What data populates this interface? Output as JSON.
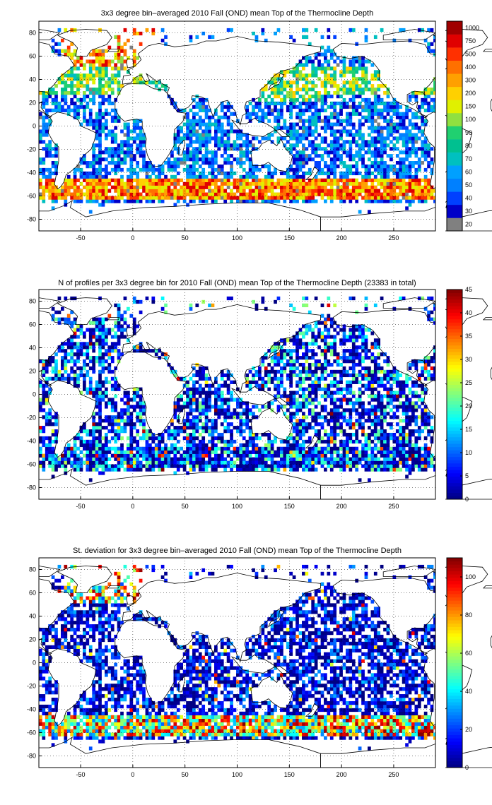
{
  "panels": [
    {
      "title": "3x3 degree bin–averaged 2010 Fall (OND) mean Top of the Thermocline Depth",
      "colorbar": {
        "type": "categorical",
        "labels": [
          "20",
          "30",
          "40",
          "50",
          "60",
          "70",
          "80",
          "90",
          "100",
          "150",
          "200",
          "300",
          "400",
          "500",
          "750",
          "1000"
        ],
        "colors": [
          "#808080",
          "#0000c8",
          "#0040ff",
          "#0080ff",
          "#00a0ff",
          "#00c0c0",
          "#00c090",
          "#20d070",
          "#90e040",
          "#e0f000",
          "#ffd000",
          "#ffa000",
          "#ff7000",
          "#ff3000",
          "#e00000",
          "#a00000"
        ]
      }
    },
    {
      "title": "N of profiles per 3x3 degree bin for 2010 Fall (OND) mean Top of the Thermocline Depth  (23383 in total)",
      "colorbar": {
        "type": "continuous",
        "min": 0,
        "max": 45,
        "ticks": [
          "0",
          "5",
          "10",
          "15",
          "20",
          "25",
          "30",
          "35",
          "40",
          "45"
        ]
      }
    },
    {
      "title": "St. deviation for 3x3 degree bin–averaged 2010 Fall (OND) mean Top of the Thermocline Depth",
      "colorbar": {
        "type": "continuous",
        "min": 0,
        "max": 110,
        "ticks": [
          "0",
          "20",
          "40",
          "60",
          "80",
          "100"
        ]
      }
    }
  ],
  "axes": {
    "xticks": [
      "-50",
      "0",
      "50",
      "100",
      "150",
      "200",
      "250"
    ],
    "yticks": [
      "-80",
      "-60",
      "-40",
      "-20",
      "0",
      "20",
      "40",
      "60",
      "80"
    ],
    "xlim": [
      -90,
      290
    ],
    "ylim": [
      -90,
      90
    ],
    "grid": "dotted"
  },
  "colors": {
    "land": "#ffffff",
    "coastline": "#000000",
    "jet_low": "#000080",
    "jet_high": "#800000"
  }
}
